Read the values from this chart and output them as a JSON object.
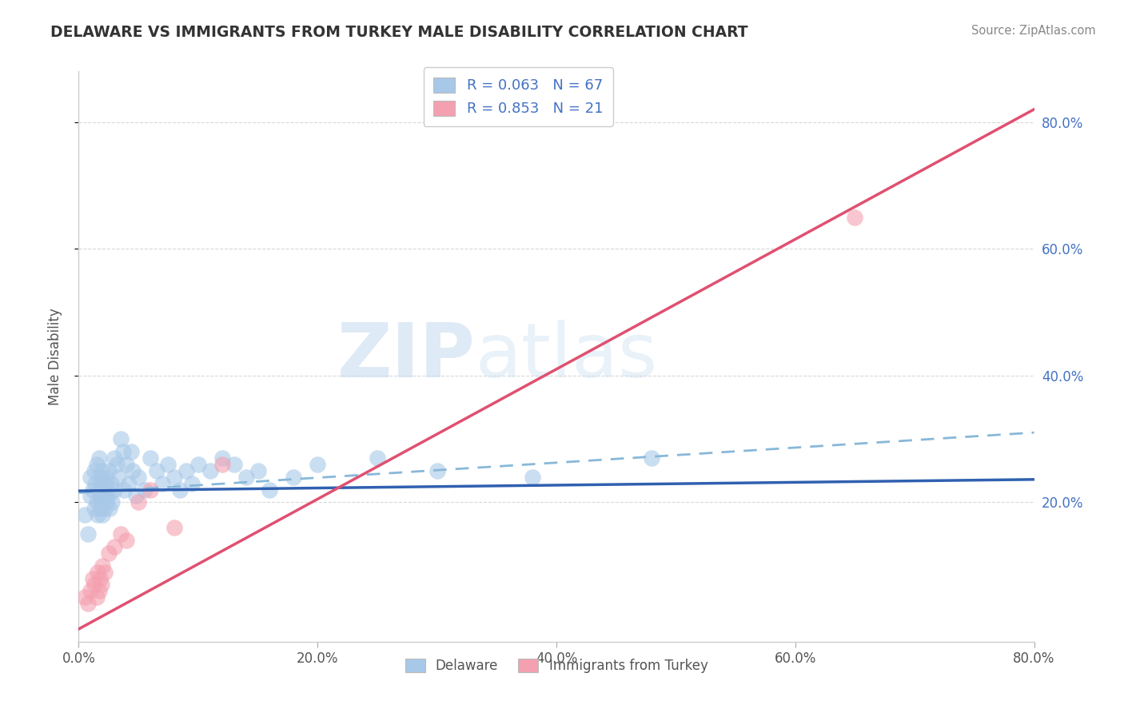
{
  "title": "DELAWARE VS IMMIGRANTS FROM TURKEY MALE DISABILITY CORRELATION CHART",
  "source": "Source: ZipAtlas.com",
  "ylabel": "Male Disability",
  "xmin": 0.0,
  "xmax": 0.8,
  "ymin": -0.02,
  "ymax": 0.88,
  "right_ytick_vals": [
    0.2,
    0.4,
    0.6,
    0.8
  ],
  "right_yticklabels": [
    "20.0%",
    "40.0%",
    "60.0%",
    "80.0%"
  ],
  "xtick_vals": [
    0.0,
    0.2,
    0.4,
    0.6,
    0.8
  ],
  "xticklabels": [
    "0.0%",
    "20.0%",
    "40.0%",
    "60.0%",
    "80.0%"
  ],
  "legend_r_blue": "0.063",
  "legend_n_blue": "67",
  "legend_r_pink": "0.853",
  "legend_n_pink": "21",
  "legend_label_blue": "Delaware",
  "legend_label_pink": "Immigrants from Turkey",
  "blue_color": "#A8C8E8",
  "pink_color": "#F4A0B0",
  "trend_blue_solid": "#3060B0",
  "trend_pink_solid": "#E05070",
  "trend_blue_dashed": "#88B8D8",
  "watermark_zip": "ZIP",
  "watermark_atlas": "atlas",
  "grid_color": "#C8C8C8",
  "background_color": "#FFFFFF",
  "blue_x": [
    0.005,
    0.008,
    0.01,
    0.01,
    0.012,
    0.013,
    0.013,
    0.014,
    0.015,
    0.015,
    0.016,
    0.017,
    0.017,
    0.018,
    0.018,
    0.018,
    0.019,
    0.019,
    0.02,
    0.02,
    0.02,
    0.021,
    0.022,
    0.022,
    0.023,
    0.023,
    0.024,
    0.025,
    0.025,
    0.026,
    0.027,
    0.028,
    0.03,
    0.03,
    0.032,
    0.033,
    0.035,
    0.037,
    0.038,
    0.04,
    0.042,
    0.044,
    0.045,
    0.048,
    0.05,
    0.055,
    0.06,
    0.065,
    0.07,
    0.075,
    0.08,
    0.085,
    0.09,
    0.095,
    0.1,
    0.11,
    0.12,
    0.13,
    0.14,
    0.15,
    0.16,
    0.18,
    0.2,
    0.25,
    0.3,
    0.38,
    0.48
  ],
  "blue_y": [
    0.18,
    0.15,
    0.21,
    0.24,
    0.22,
    0.19,
    0.25,
    0.23,
    0.2,
    0.26,
    0.18,
    0.22,
    0.27,
    0.21,
    0.24,
    0.19,
    0.23,
    0.2,
    0.22,
    0.25,
    0.18,
    0.21,
    0.23,
    0.19,
    0.24,
    0.2,
    0.22,
    0.21,
    0.25,
    0.19,
    0.23,
    0.2,
    0.27,
    0.22,
    0.26,
    0.24,
    0.3,
    0.28,
    0.22,
    0.26,
    0.23,
    0.28,
    0.25,
    0.21,
    0.24,
    0.22,
    0.27,
    0.25,
    0.23,
    0.26,
    0.24,
    0.22,
    0.25,
    0.23,
    0.26,
    0.25,
    0.27,
    0.26,
    0.24,
    0.25,
    0.22,
    0.24,
    0.26,
    0.27,
    0.25,
    0.24,
    0.27
  ],
  "pink_x": [
    0.005,
    0.008,
    0.01,
    0.012,
    0.013,
    0.015,
    0.016,
    0.017,
    0.018,
    0.019,
    0.02,
    0.022,
    0.025,
    0.03,
    0.035,
    0.04,
    0.05,
    0.06,
    0.08,
    0.12,
    0.65
  ],
  "pink_y": [
    0.05,
    0.04,
    0.06,
    0.08,
    0.07,
    0.05,
    0.09,
    0.06,
    0.08,
    0.07,
    0.1,
    0.09,
    0.12,
    0.13,
    0.15,
    0.14,
    0.2,
    0.22,
    0.16,
    0.26,
    0.65
  ],
  "trend_blue_x0": 0.0,
  "trend_blue_x1": 0.8,
  "trend_blue_y0": 0.218,
  "trend_blue_y1": 0.236,
  "trend_blue_dash_y0": 0.215,
  "trend_blue_dash_y1": 0.31,
  "trend_pink_x0": 0.0,
  "trend_pink_x1": 0.8,
  "trend_pink_y0": 0.0,
  "trend_pink_y1": 0.82
}
